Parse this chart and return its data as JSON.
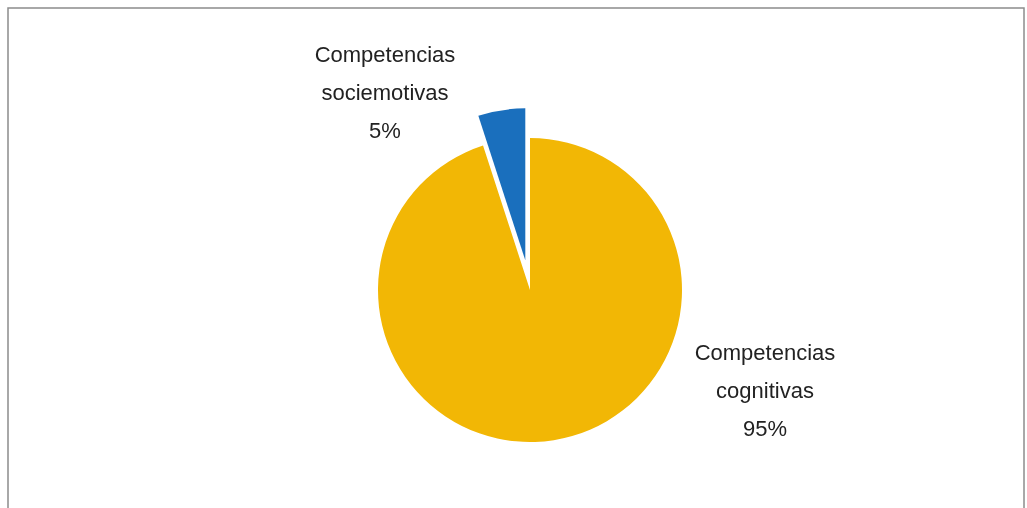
{
  "chart_data": {
    "type": "pie",
    "categories": [
      "Competencias cognitivas",
      "Competencias sociemotivas"
    ],
    "values": [
      95,
      5
    ],
    "colors": [
      "#f2b705",
      "#1a6fbd"
    ],
    "value_labels": [
      "95%",
      "5%"
    ]
  }
}
